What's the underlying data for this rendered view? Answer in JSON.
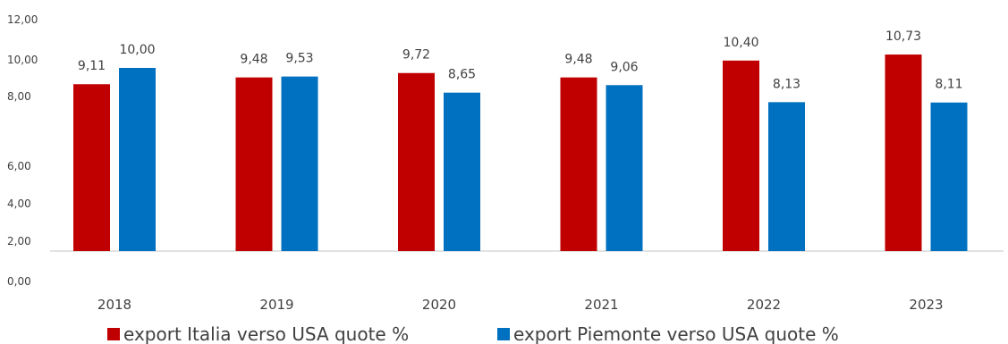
{
  "chart_data": {
    "type": "bar",
    "categories": [
      "2018",
      "2019",
      "2020",
      "2021",
      "2022",
      "2023"
    ],
    "series": [
      {
        "name": "export Italia verso USA quote %",
        "values": [
          9.11,
          9.48,
          9.72,
          9.48,
          10.4,
          10.73
        ],
        "labels": [
          "9,11",
          "9,48",
          "9,72",
          "9,48",
          "10,40",
          "10,73"
        ],
        "color": "#C00000"
      },
      {
        "name": "export Piemonte verso USA quote %",
        "values": [
          10.0,
          9.53,
          8.65,
          9.06,
          8.13,
          8.11
        ],
        "labels": [
          "10,00",
          "9,53",
          "8,65",
          "9,06",
          "8,13",
          "8,11"
        ],
        "color": "#0070C0"
      }
    ],
    "y_tick_labels": [
      "12,00",
      "10,00",
      "8,00",
      "6,00",
      "4,00",
      "2,00",
      "0,00"
    ],
    "y_tick_values": [
      12,
      10,
      8,
      6,
      4,
      2,
      0
    ],
    "ylim": [
      0,
      12
    ],
    "grid": false,
    "legend_position": "bottom",
    "axis_color": "#D9D9D9"
  }
}
